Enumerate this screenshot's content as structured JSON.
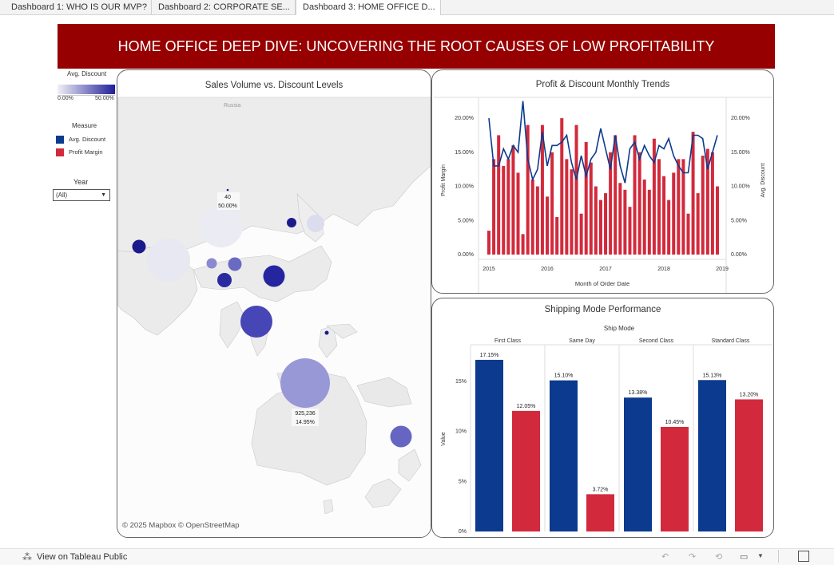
{
  "tabs": [
    {
      "label": "Dashboard 1: WHO IS OUR MVP?",
      "active": false
    },
    {
      "label": "Dashboard 2: CORPORATE SE...",
      "active": false
    },
    {
      "label": "Dashboard 3: HOME OFFICE D...",
      "active": true
    }
  ],
  "banner": {
    "title": "HOME OFFICE DEEP DIVE: UNCOVERING THE ROOT CAUSES OF LOW PROFITABILITY",
    "bg": "#960000"
  },
  "sidebar": {
    "discount_legend": {
      "title": "Avg. Discount",
      "min": "0.00%",
      "max": "50.00%"
    },
    "measure_legend": {
      "title": "Measure",
      "items": [
        {
          "label": "Avg. Discount",
          "color": "#0b3a8f"
        },
        {
          "label": "Profit Margin",
          "color": "#d22a3c"
        }
      ]
    },
    "year_filter": {
      "title": "Year",
      "value": "(All)"
    }
  },
  "map_panel": {
    "title": "Sales Volume vs. Discount Levels",
    "country_label": "Russia",
    "tooltip_small": {
      "value": "40",
      "pct": "50.00%"
    },
    "tooltip_large": {
      "value": "925,236",
      "pct": "14.95%"
    },
    "attribution": "© 2025 Mapbox  © OpenStreetMap"
  },
  "trend_panel": {
    "title": "Profit & Discount Monthly Trends",
    "xlabel": "Month of Order Date",
    "ylabel_left": "Profit Margin",
    "ylabel_right": "Avg. Discount"
  },
  "shipping_panel": {
    "title": "Shipping Mode Performance",
    "header": "Ship Mode",
    "ylabel": "Value"
  },
  "chart_data": [
    {
      "type": "line",
      "title": "Profit & Discount Monthly Trends",
      "xlabel": "Month of Order Date",
      "ylabel": "Profit Margin",
      "x_ticks": [
        "2015",
        "2016",
        "2017",
        "2018",
        "2019"
      ],
      "y_ticks": [
        "0.00%",
        "5.00%",
        "10.00%",
        "15.00%",
        "20.00%"
      ],
      "y2_ticks": [
        "0.00%",
        "5.00%",
        "10.00%",
        "15.00%",
        "20.00%"
      ],
      "ylim": [
        0,
        0.22
      ],
      "series": [
        {
          "name": "Profit Margin",
          "color": "#d22a3c",
          "values": [
            0.035,
            0.14,
            0.175,
            0.13,
            0.14,
            0.16,
            0.12,
            0.03,
            0.19,
            0.11,
            0.1,
            0.19,
            0.085,
            0.15,
            0.055,
            0.2,
            0.14,
            0.125,
            0.19,
            0.06,
            0.165,
            0.135,
            0.1,
            0.08,
            0.09,
            0.15,
            0.175,
            0.105,
            0.095,
            0.07,
            0.175,
            0.15,
            0.11,
            0.095,
            0.17,
            0.14,
            0.115,
            0.08,
            0.12,
            0.14,
            0.14,
            0.06,
            0.18,
            0.09,
            0.145,
            0.155,
            0.15,
            0.1
          ]
        },
        {
          "name": "Avg. Discount",
          "color": "#0b3a8f",
          "values": [
            0.2,
            0.13,
            0.13,
            0.155,
            0.14,
            0.16,
            0.15,
            0.225,
            0.14,
            0.11,
            0.125,
            0.18,
            0.13,
            0.16,
            0.16,
            0.165,
            0.175,
            0.135,
            0.11,
            0.145,
            0.115,
            0.14,
            0.15,
            0.185,
            0.155,
            0.125,
            0.175,
            0.13,
            0.105,
            0.155,
            0.165,
            0.14,
            0.16,
            0.145,
            0.135,
            0.16,
            0.155,
            0.17,
            0.145,
            0.13,
            0.12,
            0.12,
            0.175,
            0.175,
            0.17,
            0.125,
            0.15,
            0.175
          ]
        }
      ]
    },
    {
      "type": "bar",
      "title": "Shipping Mode Performance",
      "xlabel": "Ship Mode",
      "ylabel": "Value",
      "categories": [
        "First Class",
        "Same Day",
        "Second Class",
        "Standard Class"
      ],
      "y_ticks": [
        "0%",
        "5%",
        "10%",
        "15%"
      ],
      "ylim": [
        0,
        18.5
      ],
      "series": [
        {
          "name": "Avg. Discount",
          "color": "#0b3a8f",
          "values": [
            17.15,
            15.1,
            13.38,
            15.13
          ],
          "labels": [
            "17.15%",
            "15.10%",
            "13.38%",
            "15.13%"
          ]
        },
        {
          "name": "Profit Margin",
          "color": "#d22a3c",
          "values": [
            12.05,
            3.72,
            10.45,
            13.2
          ],
          "labels": [
            "12.05%",
            "3.72%",
            "10.45%",
            "13.20%"
          ]
        }
      ]
    }
  ],
  "footer": {
    "link": "View on Tableau Public"
  }
}
